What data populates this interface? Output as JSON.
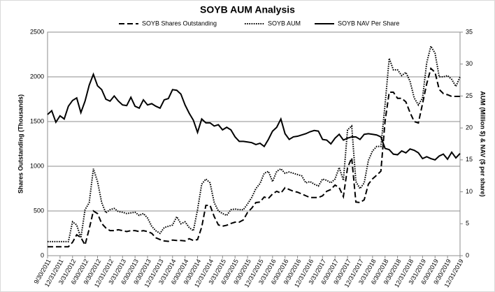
{
  "chart_data": {
    "type": "line",
    "title": "SOYB AUM Analysis",
    "ylabel": "Shares Outstanding (Thousands)",
    "y2label": "AUM (Million $) & NAV ($ per share)",
    "ylim": [
      0,
      2500
    ],
    "yticks": [
      0,
      500,
      1000,
      1500,
      2000,
      2500
    ],
    "y2lim": [
      0,
      35
    ],
    "y2ticks": [
      0,
      5,
      10,
      15,
      20,
      25,
      30,
      35
    ],
    "grid": true,
    "legend": "top",
    "categories": [
      "9/30/2011",
      null,
      null,
      "12/31/2011",
      null,
      null,
      "3/31/2012",
      null,
      null,
      "6/30/2012",
      null,
      null,
      "9/30/2012",
      null,
      null,
      "12/31/2012",
      null,
      null,
      "3/31/2013",
      null,
      null,
      "6/30/2013",
      null,
      null,
      "9/30/2013",
      null,
      null,
      "12/31/2013",
      null,
      null,
      "3/31/2014",
      null,
      null,
      "6/30/2014",
      null,
      null,
      "9/30/2014",
      null,
      null,
      "12/31/2014",
      null,
      null,
      "3/31/2015",
      null,
      null,
      "6/30/2015",
      null,
      null,
      "9/30/2015",
      null,
      null,
      "12/31/2015",
      null,
      null,
      "3/31/2016",
      null,
      null,
      "6/30/2016",
      null,
      null,
      "9/30/2016",
      null,
      null,
      "12/31/2016",
      null,
      null,
      "3/31/2017",
      null,
      null,
      "6/30/2017",
      null,
      null,
      "9/30/2017",
      null,
      null,
      "12/31/2017",
      null,
      null,
      "3/31/2018",
      null,
      null,
      "6/30/2018",
      null,
      null,
      "9/30/2018",
      null,
      null,
      "12/31/2018",
      null,
      null,
      "3/31/2019",
      null,
      null,
      "6/30/2019",
      null,
      null,
      "9/30/2019",
      null,
      null,
      "12/31/2019"
    ],
    "series": [
      {
        "name": "SOYB Shares Outstanding",
        "color": "#000000",
        "style": "dashed",
        "axis": "y",
        "values": [
          100,
          100,
          100,
          100,
          100,
          100,
          150,
          234,
          203,
          120,
          300,
          500,
          470,
          360,
          310,
          280,
          280,
          290,
          280,
          270,
          280,
          280,
          270,
          280,
          270,
          250,
          200,
          180,
          165,
          160,
          175,
          170,
          170,
          165,
          190,
          170,
          180,
          320,
          563,
          563,
          438,
          344,
          330,
          340,
          360,
          375,
          375,
          400,
          484,
          531,
          594,
          600,
          656,
          640,
          690,
          720,
          700,
          760,
          740,
          720,
          710,
          690,
          670,
          650,
          650,
          650,
          670,
          720,
          740,
          790,
          760,
          660,
          984,
          1094,
          600,
          594,
          625,
          800,
          859,
          900,
          945,
          1500,
          1828,
          1828,
          1760,
          1760,
          1720,
          1600,
          1500,
          1484,
          1700,
          1922,
          2094,
          2050,
          1859,
          1813,
          1800,
          1781,
          1781,
          1781
        ]
      },
      {
        "name": "SOYB AUM",
        "color": "#000000",
        "style": "dotted",
        "axis": "y2",
        "values": [
          2.2,
          2.2,
          2.2,
          2.2,
          2.2,
          2.2,
          5.3,
          4.8,
          2.8,
          7.2,
          8.3,
          13.6,
          11.6,
          8.3,
          6.7,
          7.2,
          7.4,
          6.9,
          6.8,
          6.6,
          6.7,
          6.8,
          6.3,
          6.6,
          5.9,
          4.6,
          3.9,
          3.5,
          4.4,
          4.6,
          4.8,
          6.1,
          5.0,
          5.3,
          4.4,
          3.9,
          7.2,
          11.2,
          12.0,
          11.4,
          8.3,
          7.0,
          6.6,
          6.3,
          7.2,
          7.3,
          7.2,
          7.2,
          8.1,
          9.1,
          10.5,
          11.3,
          12.9,
          13.2,
          11.6,
          13.2,
          13.6,
          12.9,
          13.1,
          12.9,
          12.7,
          12.5,
          11.4,
          11.6,
          11.2,
          10.9,
          12.0,
          11.8,
          11.4,
          12.0,
          13.8,
          11.8,
          19.7,
          20.3,
          11.6,
          10.5,
          11.4,
          14.9,
          16.4,
          17.1,
          17.1,
          23.6,
          30.9,
          29.1,
          29.1,
          28.2,
          28.7,
          27.3,
          24.7,
          23.6,
          24.7,
          30.2,
          32.8,
          31.7,
          28.0,
          28.0,
          28.2,
          27.6,
          26.5,
          28.0
        ]
      },
      {
        "name": "SOYB NAV Per Share",
        "color": "#000000",
        "style": "solid",
        "axis": "y2",
        "values": [
          22.1,
          22.7,
          20.9,
          21.9,
          21.4,
          23.4,
          24.3,
          24.7,
          22.4,
          24.2,
          26.7,
          28.4,
          26.6,
          26.0,
          24.5,
          24.2,
          25.0,
          24.2,
          23.6,
          23.5,
          24.8,
          23.4,
          23.1,
          24.4,
          23.6,
          23.8,
          23.4,
          23.1,
          24.4,
          24.6,
          26.0,
          25.9,
          25.3,
          23.6,
          22.3,
          21.2,
          19.3,
          21.4,
          20.8,
          20.8,
          20.3,
          20.5,
          19.7,
          20.1,
          19.7,
          18.6,
          17.9,
          17.9,
          17.8,
          17.7,
          17.4,
          17.6,
          17.1,
          18.2,
          19.5,
          20.1,
          21.4,
          19.1,
          18.2,
          18.6,
          18.7,
          18.9,
          19.1,
          19.4,
          19.6,
          19.5,
          18.2,
          18.1,
          17.5,
          18.4,
          19.0,
          18.1,
          18.4,
          18.6,
          18.6,
          18.2,
          19.0,
          19.1,
          19.0,
          18.9,
          18.6,
          16.8,
          16.6,
          15.9,
          15.8,
          16.4,
          16.1,
          16.7,
          16.5,
          16.1,
          15.2,
          15.5,
          15.2,
          15.0,
          15.6,
          15.9,
          15.1,
          16.2,
          15.3,
          16.0
        ]
      }
    ]
  }
}
